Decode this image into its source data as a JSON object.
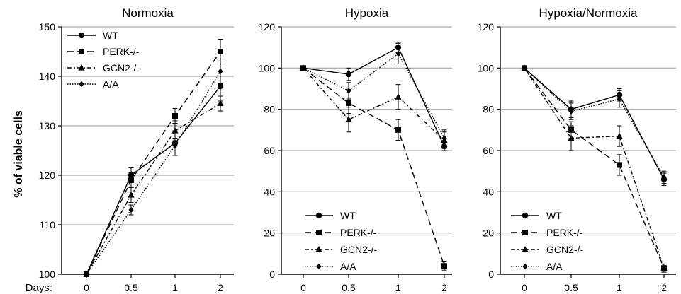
{
  "figure": {
    "ylabel": "% of viable cells",
    "x_prefix": "Days:"
  },
  "chart_data": [
    {
      "type": "line",
      "title": "Normoxia",
      "xlabel": "Days:",
      "ylabel": "% of viable cells",
      "categories": [
        "0",
        "0.5",
        "1",
        "2"
      ],
      "ylim": [
        100,
        150
      ],
      "yticks": [
        100,
        110,
        120,
        130,
        140,
        150
      ],
      "grid": true,
      "legend_position": "top-left",
      "series": [
        {
          "name": "WT",
          "marker": "circle",
          "dash": "solid",
          "values": [
            100,
            120,
            126.5,
            138
          ],
          "errors": [
            0,
            1.5,
            2.5,
            3
          ]
        },
        {
          "name": "PERK-/-",
          "marker": "square",
          "dash": "long-dash",
          "values": [
            100,
            119,
            132,
            145
          ],
          "errors": [
            0,
            1.5,
            1.5,
            2.5
          ]
        },
        {
          "name": "GCN2-/-",
          "marker": "triangle",
          "dash": "dash-dot",
          "values": [
            100,
            116,
            129,
            134.5
          ],
          "errors": [
            0,
            1.5,
            2,
            1.5
          ]
        },
        {
          "name": "A/A",
          "marker": "diamond",
          "dash": "dotted",
          "values": [
            100,
            113,
            126,
            141
          ],
          "errors": [
            0,
            1,
            1.5,
            2.5
          ]
        }
      ]
    },
    {
      "type": "line",
      "title": "Hypoxia",
      "xlabel": "",
      "ylabel": "",
      "categories": [
        "0",
        "0.5",
        "1",
        "2"
      ],
      "ylim": [
        0,
        120
      ],
      "yticks": [
        0,
        20,
        40,
        60,
        80,
        100,
        120
      ],
      "grid": true,
      "legend_position": "bottom-left",
      "series": [
        {
          "name": "WT",
          "marker": "circle",
          "dash": "solid",
          "values": [
            100,
            97,
            110,
            62
          ],
          "errors": [
            0,
            3,
            2.5,
            2
          ]
        },
        {
          "name": "PERK-/-",
          "marker": "square",
          "dash": "long-dash",
          "values": [
            100,
            83,
            70,
            4
          ],
          "errors": [
            0,
            5,
            5,
            2
          ]
        },
        {
          "name": "GCN2-/-",
          "marker": "triangle",
          "dash": "dash-dot",
          "values": [
            100,
            75,
            86,
            65
          ],
          "errors": [
            0,
            6,
            6,
            4
          ]
        },
        {
          "name": "A/A",
          "marker": "diamond",
          "dash": "dotted",
          "values": [
            100,
            89,
            107,
            66
          ],
          "errors": [
            0,
            4,
            5,
            4
          ]
        }
      ]
    },
    {
      "type": "line",
      "title": "Hypoxia/Normoxia",
      "xlabel": "",
      "ylabel": "",
      "categories": [
        "0",
        "0.5",
        "1",
        "2"
      ],
      "ylim": [
        0,
        120
      ],
      "yticks": [
        0,
        20,
        40,
        60,
        80,
        100,
        120
      ],
      "grid": true,
      "legend_position": "bottom-left",
      "series": [
        {
          "name": "WT",
          "marker": "circle",
          "dash": "solid",
          "values": [
            100,
            80,
            87,
            46
          ],
          "errors": [
            0,
            4,
            3,
            3
          ]
        },
        {
          "name": "PERK-/-",
          "marker": "square",
          "dash": "long-dash",
          "values": [
            100,
            70,
            53,
            3
          ],
          "errors": [
            0,
            4,
            5,
            2
          ]
        },
        {
          "name": "GCN2-/-",
          "marker": "triangle",
          "dash": "dash-dot",
          "values": [
            100,
            66,
            67,
            3
          ],
          "errors": [
            0,
            6,
            5,
            2
          ]
        },
        {
          "name": "A/A",
          "marker": "diamond",
          "dash": "dotted",
          "values": [
            100,
            79,
            85,
            47
          ],
          "errors": [
            0,
            4,
            4,
            3
          ]
        }
      ]
    }
  ]
}
